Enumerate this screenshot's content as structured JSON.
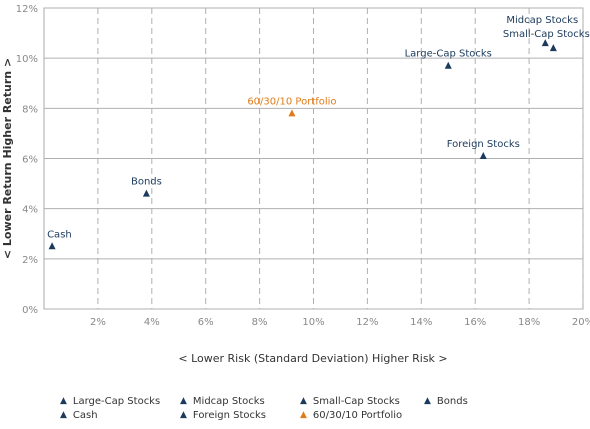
{
  "chart_data": {
    "type": "scatter",
    "xlabel": "< Lower Risk (Standard Deviation) Higher Risk >",
    "ylabel": "< Lower Return Higher Return >",
    "xlim": [
      0,
      20
    ],
    "ylim": [
      0,
      12
    ],
    "x_ticks": [
      "2%",
      "4%",
      "6%",
      "8%",
      "10%",
      "12%",
      "14%",
      "16%",
      "18%",
      "20%"
    ],
    "y_ticks": [
      "0%",
      "2%",
      "4%",
      "6%",
      "8%",
      "10%",
      "12%"
    ],
    "grid": true,
    "series": [
      {
        "name": "Large-Cap Stocks",
        "x": 15.0,
        "y": 9.7,
        "color": "#1b3a5c"
      },
      {
        "name": "Midcap Stocks",
        "x": 18.6,
        "y": 10.6,
        "color": "#1b3a5c"
      },
      {
        "name": "Small-Cap Stocks",
        "x": 18.9,
        "y": 10.4,
        "color": "#1b3a5c"
      },
      {
        "name": "Bonds",
        "x": 3.8,
        "y": 4.6,
        "color": "#1b3a5c"
      },
      {
        "name": "Cash",
        "x": 0.3,
        "y": 2.5,
        "color": "#1b3a5c"
      },
      {
        "name": "Foreign Stocks",
        "x": 16.3,
        "y": 6.1,
        "color": "#1b3a5c"
      },
      {
        "name": "60/30/10 Portfolio",
        "x": 9.2,
        "y": 7.8,
        "color": "#e07b1a"
      }
    ],
    "legend": [
      {
        "label": "Large-Cap Stocks",
        "color": "#1b3a5c"
      },
      {
        "label": "Midcap Stocks",
        "color": "#1b3a5c"
      },
      {
        "label": "Small-Cap Stocks",
        "color": "#1b3a5c"
      },
      {
        "label": "Bonds",
        "color": "#1b3a5c"
      },
      {
        "label": "Cash",
        "color": "#1b3a5c"
      },
      {
        "label": "Foreign Stocks",
        "color": "#1b3a5c"
      },
      {
        "label": "60/30/10 Portfolio",
        "color": "#e07b1a"
      }
    ],
    "legend_position": "bottom"
  }
}
